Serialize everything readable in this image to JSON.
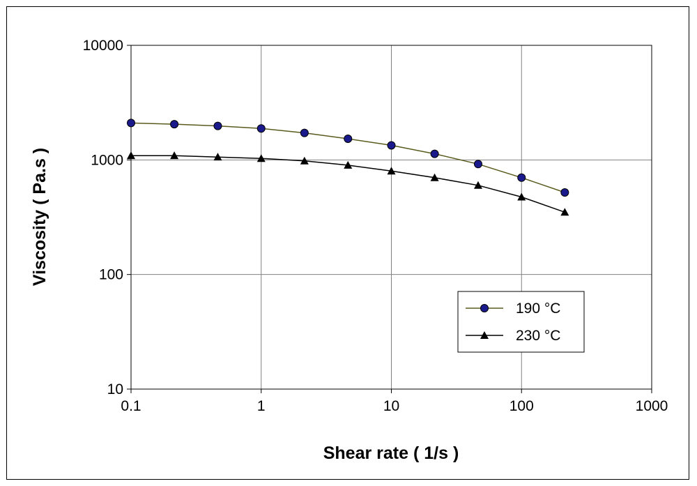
{
  "chart_data": {
    "type": "line",
    "xlabel": "Shear rate ( 1/s )",
    "ylabel": "Viscosity ( Pa.s )",
    "x_scale": "log",
    "y_scale": "log",
    "xlim": [
      0.1,
      1000
    ],
    "ylim": [
      10,
      10000
    ],
    "x_ticks": [
      "0.1",
      "1",
      "10",
      "100",
      "1000"
    ],
    "y_ticks": [
      "10",
      "100",
      "1000",
      "10000"
    ],
    "grid": true,
    "legend_position": "lower-right",
    "series": [
      {
        "name": "190 °C",
        "marker": "circle",
        "color": "#5a5a1e",
        "marker_color": "#1a1a8c",
        "x": [
          0.1,
          0.215,
          0.464,
          1,
          2.15,
          4.64,
          10,
          21.5,
          46.4,
          100,
          215
        ],
        "y": [
          2100,
          2050,
          1980,
          1880,
          1720,
          1530,
          1340,
          1130,
          920,
          700,
          520
        ]
      },
      {
        "name": "230 °C",
        "marker": "triangle",
        "color": "#000000",
        "marker_color": "#000000",
        "x": [
          0.1,
          0.215,
          0.464,
          1,
          2.15,
          4.64,
          10,
          21.5,
          46.4,
          100,
          215
        ],
        "y": [
          1090,
          1090,
          1060,
          1030,
          980,
          900,
          800,
          700,
          600,
          475,
          350
        ]
      }
    ]
  }
}
